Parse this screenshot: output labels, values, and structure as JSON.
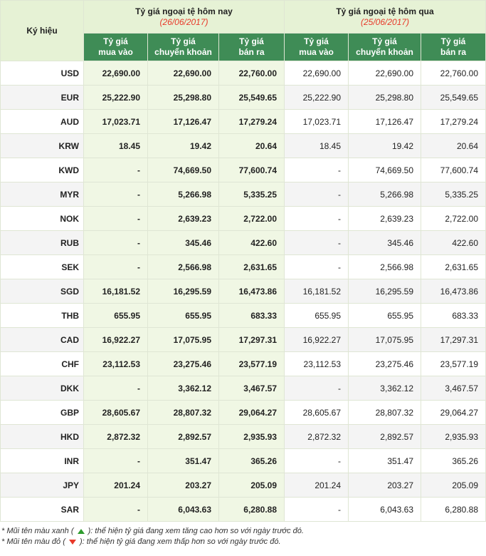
{
  "header": {
    "symbol_label": "Ký hiệu",
    "today_title": "Tỷ giá ngoại tệ hôm nay",
    "today_date": "(26/06/2017)",
    "yesterday_title": "Tỷ giá ngoại tệ hôm qua",
    "yesterday_date": "(25/06/2017)",
    "sub": {
      "buy_line1": "Tỷ giá",
      "buy_line2": "mua vào",
      "transfer_line1": "Tỷ giá",
      "transfer_line2": "chuyển khoản",
      "sell_line1": "Tỷ giá",
      "sell_line2": "bán ra"
    }
  },
  "rows": [
    {
      "code": "USD",
      "today": [
        "22,690.00",
        "22,690.00",
        "22,760.00"
      ],
      "yesterday": [
        "22,690.00",
        "22,690.00",
        "22,760.00"
      ]
    },
    {
      "code": "EUR",
      "today": [
        "25,222.90",
        "25,298.80",
        "25,549.65"
      ],
      "yesterday": [
        "25,222.90",
        "25,298.80",
        "25,549.65"
      ]
    },
    {
      "code": "AUD",
      "today": [
        "17,023.71",
        "17,126.47",
        "17,279.24"
      ],
      "yesterday": [
        "17,023.71",
        "17,126.47",
        "17,279.24"
      ]
    },
    {
      "code": "KRW",
      "today": [
        "18.45",
        "19.42",
        "20.64"
      ],
      "yesterday": [
        "18.45",
        "19.42",
        "20.64"
      ]
    },
    {
      "code": "KWD",
      "today": [
        "-",
        "74,669.50",
        "77,600.74"
      ],
      "yesterday": [
        "-",
        "74,669.50",
        "77,600.74"
      ]
    },
    {
      "code": "MYR",
      "today": [
        "-",
        "5,266.98",
        "5,335.25"
      ],
      "yesterday": [
        "-",
        "5,266.98",
        "5,335.25"
      ]
    },
    {
      "code": "NOK",
      "today": [
        "-",
        "2,639.23",
        "2,722.00"
      ],
      "yesterday": [
        "-",
        "2,639.23",
        "2,722.00"
      ]
    },
    {
      "code": "RUB",
      "today": [
        "-",
        "345.46",
        "422.60"
      ],
      "yesterday": [
        "-",
        "345.46",
        "422.60"
      ]
    },
    {
      "code": "SEK",
      "today": [
        "-",
        "2,566.98",
        "2,631.65"
      ],
      "yesterday": [
        "-",
        "2,566.98",
        "2,631.65"
      ]
    },
    {
      "code": "SGD",
      "today": [
        "16,181.52",
        "16,295.59",
        "16,473.86"
      ],
      "yesterday": [
        "16,181.52",
        "16,295.59",
        "16,473.86"
      ]
    },
    {
      "code": "THB",
      "today": [
        "655.95",
        "655.95",
        "683.33"
      ],
      "yesterday": [
        "655.95",
        "655.95",
        "683.33"
      ]
    },
    {
      "code": "CAD",
      "today": [
        "16,922.27",
        "17,075.95",
        "17,297.31"
      ],
      "yesterday": [
        "16,922.27",
        "17,075.95",
        "17,297.31"
      ]
    },
    {
      "code": "CHF",
      "today": [
        "23,112.53",
        "23,275.46",
        "23,577.19"
      ],
      "yesterday": [
        "23,112.53",
        "23,275.46",
        "23,577.19"
      ]
    },
    {
      "code": "DKK",
      "today": [
        "-",
        "3,362.12",
        "3,467.57"
      ],
      "yesterday": [
        "-",
        "3,362.12",
        "3,467.57"
      ]
    },
    {
      "code": "GBP",
      "today": [
        "28,605.67",
        "28,807.32",
        "29,064.27"
      ],
      "yesterday": [
        "28,605.67",
        "28,807.32",
        "29,064.27"
      ]
    },
    {
      "code": "HKD",
      "today": [
        "2,872.32",
        "2,892.57",
        "2,935.93"
      ],
      "yesterday": [
        "2,872.32",
        "2,892.57",
        "2,935.93"
      ]
    },
    {
      "code": "INR",
      "today": [
        "-",
        "351.47",
        "365.26"
      ],
      "yesterday": [
        "-",
        "351.47",
        "365.26"
      ]
    },
    {
      "code": "JPY",
      "today": [
        "201.24",
        "203.27",
        "205.09"
      ],
      "yesterday": [
        "201.24",
        "203.27",
        "205.09"
      ]
    },
    {
      "code": "SAR",
      "today": [
        "-",
        "6,043.63",
        "6,280.88"
      ],
      "yesterday": [
        "-",
        "6,043.63",
        "6,280.88"
      ]
    }
  ],
  "notes": {
    "up_prefix": "* Mũi tên màu xanh (",
    "up_suffix": "): thể hiện tỷ giá đang xem tăng cao hơn so với ngày trước đó.",
    "down_prefix": "* Mũi tên màu đỏ (",
    "down_suffix": "): thể hiện tỷ giá đang xem thấp hơn so với ngày trước đó.",
    "up_icon": "green-up-triangle-icon",
    "down_icon": "red-down-triangle-icon"
  },
  "colors": {
    "header_bg": "#e6f2d5",
    "subheader_bg": "#3f8c56",
    "today_cell_bg": "#f0f7e4",
    "date_text": "#e8392a",
    "up_arrow": "#2e9c2e",
    "down_arrow": "#e8392a"
  }
}
